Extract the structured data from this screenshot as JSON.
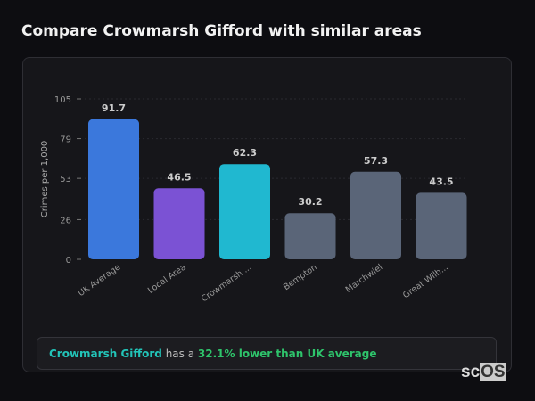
{
  "title": "Compare Crowmarsh Gifford with similar areas",
  "chart_data": {
    "type": "bar",
    "ylabel": "Crimes per 1,000",
    "ylim": [
      0,
      105
    ],
    "yticks": [
      0,
      26,
      53,
      79,
      105
    ],
    "grid": true,
    "categories": [
      "UK Average",
      "Local Area",
      "Crowmarsh ...",
      "Bempton",
      "Marchwiel",
      "Great Wilb..."
    ],
    "values": [
      91.7,
      46.5,
      62.3,
      30.2,
      57.3,
      43.5
    ],
    "data_labels": [
      "91.7",
      "46.5",
      "62.3",
      "30.2",
      "57.3",
      "43.5"
    ],
    "colors": [
      "#3b78dc",
      "#7b52d4",
      "#20b8d0",
      "#5a6578",
      "#5a6578",
      "#5a6578"
    ]
  },
  "summary": {
    "area": "Crowmarsh Gifford",
    "middle": " has a ",
    "comparison": "32.1% lower than UK average"
  },
  "watermark": "scOS"
}
